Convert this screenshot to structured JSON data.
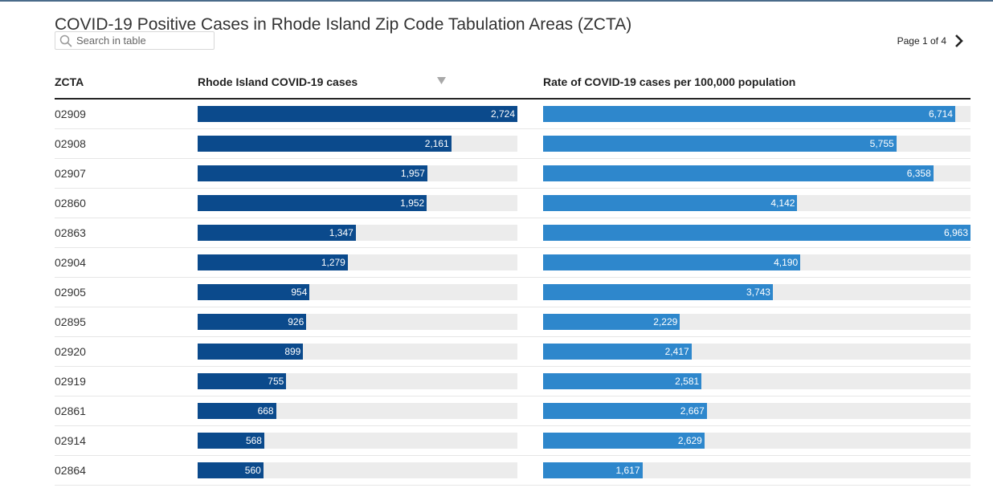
{
  "title": "COVID-19 Positive Cases in Rhode Island Zip Code Tabulation Areas (ZCTA)",
  "search": {
    "placeholder": "Search in table"
  },
  "pager": {
    "label": "Page 1 of 4"
  },
  "columns": {
    "zcta": "ZCTA",
    "cases": "Rhode Island COVID-19 cases",
    "rate": "Rate of COVID-19 cases per 100,000 population"
  },
  "colors": {
    "cases_bar": "#0b4a8c",
    "rate_bar": "#2e87cc",
    "track": "#ececec"
  },
  "chart_data": {
    "type": "table",
    "sorted_by": "cases",
    "sort_direction": "descending",
    "scales": {
      "cases_max": 2724,
      "rate_max": 6963
    },
    "rows": [
      {
        "zcta": "02909",
        "cases": 2724,
        "rate": 6714,
        "cases_label": "2,724",
        "rate_label": "6,714"
      },
      {
        "zcta": "02908",
        "cases": 2161,
        "rate": 5755,
        "cases_label": "2,161",
        "rate_label": "5,755"
      },
      {
        "zcta": "02907",
        "cases": 1957,
        "rate": 6358,
        "cases_label": "1,957",
        "rate_label": "6,358"
      },
      {
        "zcta": "02860",
        "cases": 1952,
        "rate": 4142,
        "cases_label": "1,952",
        "rate_label": "4,142"
      },
      {
        "zcta": "02863",
        "cases": 1347,
        "rate": 6963,
        "cases_label": "1,347",
        "rate_label": "6,963"
      },
      {
        "zcta": "02904",
        "cases": 1279,
        "rate": 4190,
        "cases_label": "1,279",
        "rate_label": "4,190"
      },
      {
        "zcta": "02905",
        "cases": 954,
        "rate": 3743,
        "cases_label": "954",
        "rate_label": "3,743"
      },
      {
        "zcta": "02895",
        "cases": 926,
        "rate": 2229,
        "cases_label": "926",
        "rate_label": "2,229"
      },
      {
        "zcta": "02920",
        "cases": 899,
        "rate": 2417,
        "cases_label": "899",
        "rate_label": "2,417"
      },
      {
        "zcta": "02919",
        "cases": 755,
        "rate": 2581,
        "cases_label": "755",
        "rate_label": "2,581"
      },
      {
        "zcta": "02861",
        "cases": 668,
        "rate": 2667,
        "cases_label": "668",
        "rate_label": "2,667"
      },
      {
        "zcta": "02914",
        "cases": 568,
        "rate": 2629,
        "cases_label": "568",
        "rate_label": "2,629"
      },
      {
        "zcta": "02864",
        "cases": 560,
        "rate": 1617,
        "cases_label": "560",
        "rate_label": "1,617"
      }
    ]
  }
}
